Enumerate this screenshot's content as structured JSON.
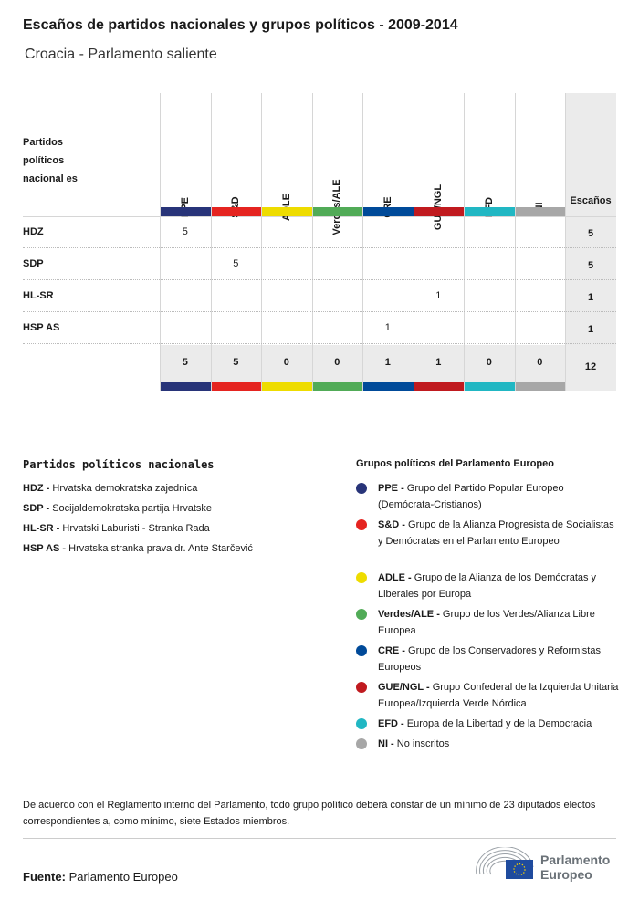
{
  "title": "Escaños de partidos nacionales y grupos políticos - 2009-2014",
  "subtitle": "Croacia - Parlamento saliente",
  "table": {
    "row_header": "Partidos políticos nacional es",
    "total_header": "Escaños",
    "groups": [
      {
        "name": "PPE",
        "color": "#283479"
      },
      {
        "name": "S&D",
        "color": "#e52420"
      },
      {
        "name": "ADLE",
        "color": "#eedc00"
      },
      {
        "name": "Verdes/ALE",
        "color": "#51ab57"
      },
      {
        "name": "CRE",
        "color": "#004a99"
      },
      {
        "name": "GUE/NGL",
        "color": "#c01a1f"
      },
      {
        "name": "EFD",
        "color": "#21b7c3"
      },
      {
        "name": "NI",
        "color": "#a7a7a7"
      }
    ],
    "rows": [
      {
        "party": "HDZ",
        "values": [
          "5",
          "",
          "",
          "",
          "",
          "",
          "",
          ""
        ],
        "total": "5"
      },
      {
        "party": "SDP",
        "values": [
          "",
          "5",
          "",
          "",
          "",
          "",
          "",
          ""
        ],
        "total": "5"
      },
      {
        "party": "HL-SR",
        "values": [
          "",
          "",
          "",
          "",
          "",
          "1",
          "",
          ""
        ],
        "total": "1"
      },
      {
        "party": "HSP AS",
        "values": [
          "",
          "",
          "",
          "",
          "1",
          "",
          "",
          ""
        ],
        "total": "1"
      }
    ],
    "totals": [
      "5",
      "5",
      "0",
      "0",
      "1",
      "1",
      "0",
      "0"
    ],
    "grand_total": "12"
  },
  "national_legend": {
    "title": "Partidos políticos nacionales",
    "items": [
      {
        "abbr": "HDZ -",
        "name": "Hrvatska demokratska zajednica"
      },
      {
        "abbr": "SDP -",
        "name": "Socijaldemokratska partija Hrvatske"
      },
      {
        "abbr": "HL-SR -",
        "name": "Hrvatski Laburisti - Stranka Rada"
      },
      {
        "abbr": "HSP AS -",
        "name": "Hrvatska stranka prava dr. Ante Starčević"
      }
    ]
  },
  "group_legend": {
    "title": "Grupos políticos del Parlamento Europeo",
    "items": [
      {
        "abbr": "PPE -",
        "name": "Grupo del Partido Popular Europeo (Demócrata-Cristianos)"
      },
      {
        "abbr": "S&D -",
        "name": "Grupo de la Alianza Progresista de Socialistas y Demócratas en el Parlamento Europeo"
      },
      {
        "abbr": "ADLE -",
        "name": "Grupo de la Alianza de los Demócratas y Liberales por Europa"
      },
      {
        "abbr": "Verdes/ALE -",
        "name": "Grupo de los Verdes/Alianza Libre Europea"
      },
      {
        "abbr": "CRE -",
        "name": "Grupo de los Conservadores y Reformistas Europeos"
      },
      {
        "abbr": "GUE/NGL -",
        "name": "Grupo Confederal de la Izquierda Unitaria Europea/Izquierda Verde Nórdica"
      },
      {
        "abbr": "EFD -",
        "name": "Europa de la Libertad y de la Democracia"
      },
      {
        "abbr": "NI -",
        "name": "No inscritos"
      }
    ]
  },
  "note": "De acuerdo con el Reglamento interno del Parlamento, todo grupo político deberá constar de un mínimo de 23 diputados electos correspondientes a, como mínimo, siete Estados miembros.",
  "source": {
    "label": "Fuente:",
    "value": "Parlamento Europeo"
  },
  "logo": {
    "text": "Parlamento Europeo"
  }
}
